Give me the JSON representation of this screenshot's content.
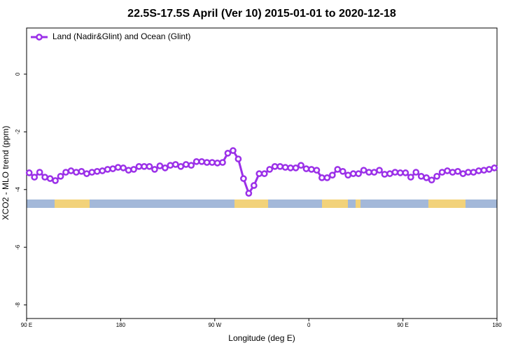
{
  "chart_data": {
    "type": "line",
    "title": "22.5S-17.5S April (Ver 10)   2015-01-01 to 2020-12-18",
    "x_label": "Longitude (deg E)",
    "y_label": "XCO2 - MLO trend (ppm)",
    "xlim": [
      90,
      540
    ],
    "xticks": [
      {
        "value": 90,
        "label": "90 E"
      },
      {
        "value": 180,
        "label": "180"
      },
      {
        "value": 270,
        "label": "90 W"
      },
      {
        "value": 360,
        "label": "0"
      },
      {
        "value": 450,
        "label": "90 E"
      },
      {
        "value": 540,
        "label": "180"
      }
    ],
    "ylim": [
      -8.47,
      1.6
    ],
    "yticks": [
      0,
      -2,
      -4,
      -6,
      -8
    ],
    "legend": "top-left",
    "x": [
      92.5,
      97.5,
      102.5,
      107.5,
      112.5,
      117.5,
      122.5,
      127.5,
      132.5,
      137.5,
      142.5,
      147.5,
      152.5,
      157.5,
      162.5,
      167.5,
      172.5,
      177.5,
      182.5,
      187.5,
      192.5,
      197.5,
      202.5,
      207.5,
      212.5,
      217.5,
      222.5,
      227.5,
      232.5,
      237.5,
      242.5,
      247.5,
      252.5,
      257.5,
      262.5,
      267.5,
      272.5,
      277.5,
      282.5,
      287.5,
      292.5,
      297.5,
      302.5,
      307.5,
      312.5,
      317.5,
      322.5,
      327.5,
      332.5,
      337.5,
      342.5,
      347.5,
      352.5,
      357.5,
      362.5,
      367.5,
      372.5,
      377.5,
      382.5,
      387.5,
      392.5,
      397.5,
      402.5,
      407.5,
      412.5,
      417.5,
      422.5,
      427.5,
      432.5,
      437.5,
      442.5,
      447.5,
      452.5,
      457.5,
      462.5,
      467.5,
      472.5,
      477.5,
      482.5,
      487.5,
      492.5,
      497.5,
      502.5,
      507.5,
      512.5,
      517.5,
      522.5,
      527.5,
      532.5,
      537.5
    ],
    "series": [
      {
        "name": "Land (Nadir&Glint) and Ocean (Glint)",
        "color": "#9b30e8",
        "values": [
          -3.42,
          -3.57,
          -3.4,
          -3.57,
          -3.62,
          -3.69,
          -3.54,
          -3.4,
          -3.35,
          -3.4,
          -3.37,
          -3.45,
          -3.4,
          -3.37,
          -3.35,
          -3.3,
          -3.28,
          -3.23,
          -3.25,
          -3.33,
          -3.3,
          -3.2,
          -3.2,
          -3.2,
          -3.3,
          -3.18,
          -3.25,
          -3.16,
          -3.13,
          -3.2,
          -3.13,
          -3.16,
          -3.03,
          -3.03,
          -3.06,
          -3.06,
          -3.08,
          -3.06,
          -2.74,
          -2.65,
          -2.94,
          -3.62,
          -4.13,
          -3.86,
          -3.45,
          -3.45,
          -3.3,
          -3.2,
          -3.2,
          -3.23,
          -3.25,
          -3.25,
          -3.16,
          -3.28,
          -3.3,
          -3.33,
          -3.59,
          -3.59,
          -3.5,
          -3.3,
          -3.37,
          -3.5,
          -3.45,
          -3.45,
          -3.33,
          -3.4,
          -3.4,
          -3.33,
          -3.47,
          -3.45,
          -3.4,
          -3.42,
          -3.42,
          -3.57,
          -3.4,
          -3.54,
          -3.59,
          -3.67,
          -3.54,
          -3.4,
          -3.35,
          -3.4,
          -3.37,
          -3.45,
          -3.4,
          -3.4,
          -3.35,
          -3.33,
          -3.3,
          -3.25
        ]
      }
    ]
  }
}
